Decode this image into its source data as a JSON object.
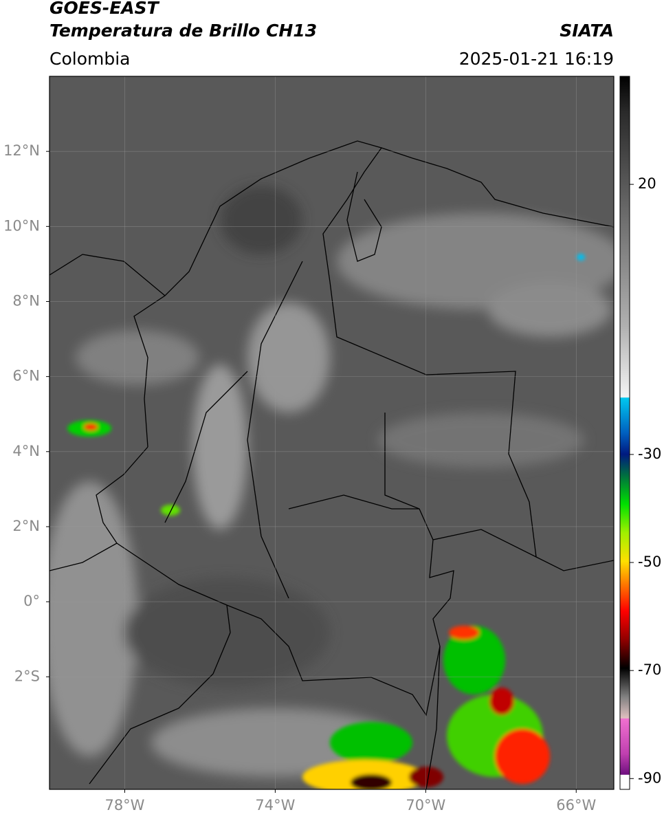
{
  "map": {
    "title": "GOES-EAST",
    "subtitle": "Temperatura de Brillo CH13",
    "source": "SIATA",
    "region": "Colombia",
    "datetime": "2025-01-21 16:19",
    "xlim": [
      -80,
      -65
    ],
    "ylim": [
      -5,
      14
    ],
    "xticks": [
      {
        "value": -78,
        "label": "78°W"
      },
      {
        "value": -74,
        "label": "74°W"
      },
      {
        "value": -70,
        "label": "70°W"
      },
      {
        "value": -66,
        "label": "66°W"
      }
    ],
    "yticks": [
      {
        "value": 12,
        "label": "12°N"
      },
      {
        "value": 10,
        "label": "10°N"
      },
      {
        "value": 8,
        "label": "8°N"
      },
      {
        "value": 6,
        "label": "6°N"
      },
      {
        "value": 4,
        "label": "4°N"
      },
      {
        "value": 2,
        "label": "2°N"
      },
      {
        "value": 0,
        "label": "0°"
      },
      {
        "value": -2,
        "label": "2°S"
      }
    ],
    "grid": true,
    "colorbar": {
      "lim": [
        -92,
        40
      ],
      "ticks": [
        20,
        -30,
        -50,
        -70,
        -90
      ]
    }
  }
}
